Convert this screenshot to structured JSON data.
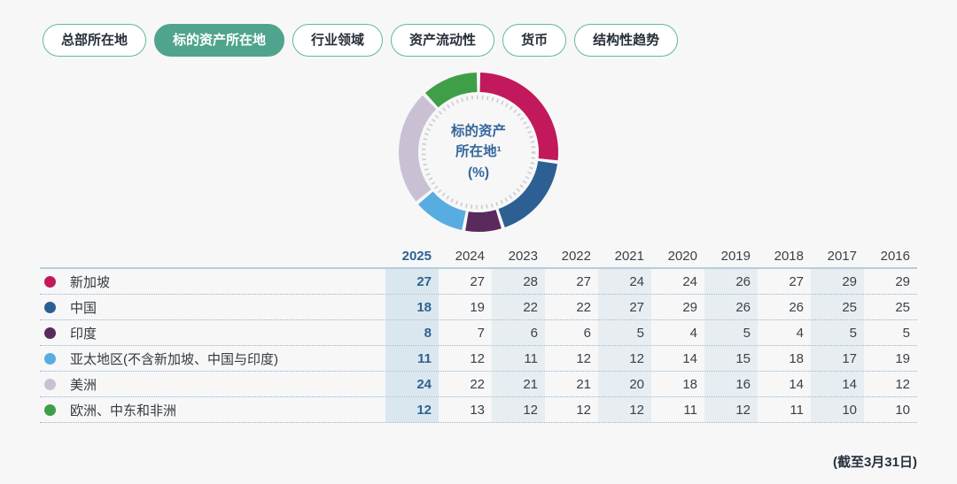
{
  "tabs": {
    "items": [
      {
        "name": "tab-headquarters-location",
        "label": "总部所在地",
        "active": false
      },
      {
        "name": "tab-underlying-asset-location",
        "label": "标的资产所在地",
        "active": true
      },
      {
        "name": "tab-industry-sector",
        "label": "行业领域",
        "active": false
      },
      {
        "name": "tab-asset-liquidity",
        "label": "资产流动性",
        "active": false
      },
      {
        "name": "tab-currency",
        "label": "货币",
        "active": false
      },
      {
        "name": "tab-structural-trends",
        "label": "结构性趋势",
        "active": false
      }
    ]
  },
  "donut": {
    "center_line1": "标的资产",
    "center_line2": "所在地¹",
    "center_line3": "(%)"
  },
  "chart_data": {
    "type": "pie",
    "subtype": "donut",
    "title": "标的资产所在地¹ (%)",
    "unit": "%",
    "donut_year_shown": "2025",
    "categories": [
      "2025",
      "2024",
      "2023",
      "2022",
      "2021",
      "2020",
      "2019",
      "2018",
      "2017",
      "2016"
    ],
    "series": [
      {
        "key": "singapore",
        "name": "新加坡",
        "color": "#c1195c",
        "values": [
          27,
          27,
          28,
          27,
          24,
          24,
          26,
          27,
          29,
          29
        ]
      },
      {
        "key": "china",
        "name": "中国",
        "color": "#2c6093",
        "values": [
          18,
          19,
          22,
          22,
          27,
          29,
          26,
          26,
          25,
          25
        ]
      },
      {
        "key": "india",
        "name": "印度",
        "color": "#5a2a5d",
        "values": [
          8,
          7,
          6,
          6,
          5,
          4,
          5,
          4,
          5,
          5
        ]
      },
      {
        "key": "apac-ex-sg-cn-in",
        "name": "亚太地区(不含新加坡、中国与印度)",
        "color": "#58ade0",
        "values": [
          11,
          12,
          11,
          12,
          12,
          14,
          15,
          18,
          17,
          19
        ]
      },
      {
        "key": "americas",
        "name": "美洲",
        "color": "#c9c1d3",
        "values": [
          24,
          22,
          21,
          21,
          20,
          18,
          16,
          14,
          14,
          12
        ]
      },
      {
        "key": "emea",
        "name": "欧洲、中东和非洲",
        "color": "#3f9f48",
        "values": [
          12,
          13,
          12,
          12,
          12,
          11,
          12,
          11,
          10,
          10
        ]
      }
    ],
    "note": "(截至3月31日)",
    "legend_position": "table-row-labels",
    "grid": false
  },
  "colors": {
    "tab_active_bg": "#50a48d",
    "tab_border": "#63b6a0",
    "current_year_text": "#2d6293",
    "stripe_current": "#dbe7ee",
    "stripe_alt": "#e7edf1",
    "center_text": "#34679b"
  }
}
